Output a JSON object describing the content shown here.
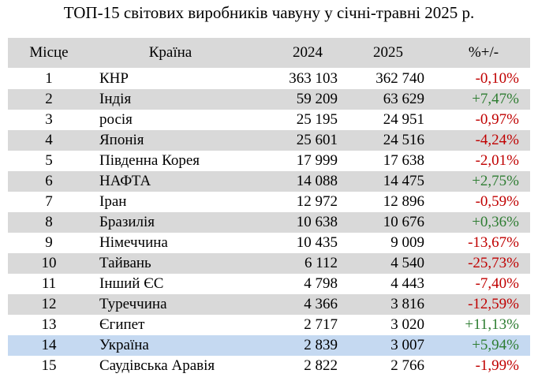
{
  "title": "ТОП-15 світових виробників чавуну у січні-травні 2025 р.",
  "table": {
    "header": [
      "Місце",
      "Країна",
      "2024",
      "2025",
      "%+/-"
    ],
    "rows": [
      [
        "1",
        "КНР",
        "363 103",
        "362 740",
        "-0,10%"
      ],
      [
        "2",
        "Індія",
        "59 209",
        "63 629",
        "+7,47%"
      ],
      [
        "3",
        "росія",
        "25 195",
        "24 951",
        "-0,97%"
      ],
      [
        "4",
        "Японія",
        "25 601",
        "24 516",
        "-4,24%"
      ],
      [
        "5",
        "Південна Корея",
        "17 999",
        "17 638",
        "-2,01%"
      ],
      [
        "6",
        "НАФТА",
        "14 088",
        "14 475",
        "+2,75%"
      ],
      [
        "7",
        "Іран",
        "12 972",
        "12 896",
        "-0,59%"
      ],
      [
        "8",
        "Бразилія",
        "10 638",
        "10 676",
        "+0,36%"
      ],
      [
        "9",
        "Німеччина",
        "10 435",
        "9 009",
        "-13,67%"
      ],
      [
        "10",
        "Тайвань",
        "6 112",
        "4 540",
        "-25,73%"
      ],
      [
        "11",
        "Інший ЄС",
        "4 798",
        "4 443",
        "-7,40%"
      ],
      [
        "12",
        "Туреччина",
        "4 366",
        "3 816",
        "-12,59%"
      ],
      [
        "13",
        "Єгипет",
        "2 717",
        "3 020",
        "+11,13%"
      ],
      [
        "14",
        "Україна",
        "2 839",
        "3 007",
        "+5,94%"
      ],
      [
        "15",
        "Саудівська Аравія",
        "2 822",
        "2 766",
        "-1,99%"
      ]
    ]
  }
}
